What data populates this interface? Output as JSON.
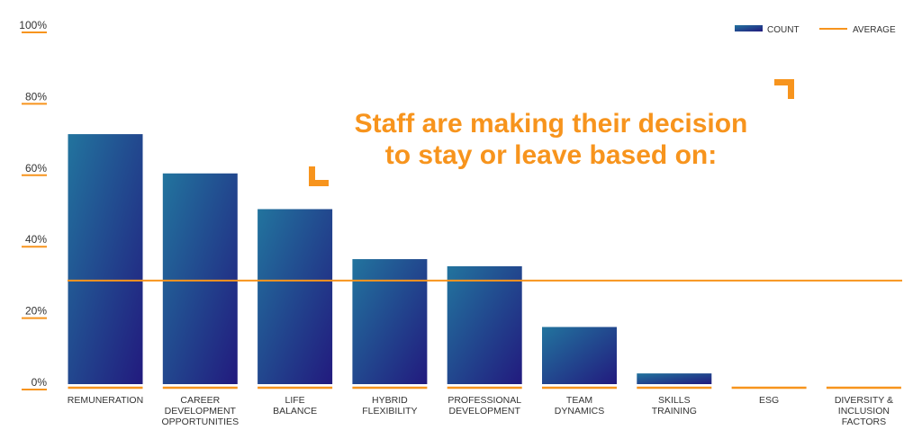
{
  "chart_data": {
    "type": "bar",
    "title": [
      "Staff are making their decision",
      "to stay or leave based on:"
    ],
    "categories": [
      [
        "REMUNERATION"
      ],
      [
        "CAREER",
        "DEVELOPMENT",
        "OPPORTUNITIES"
      ],
      [
        "LIFE",
        "BALANCE"
      ],
      [
        "HYBRID",
        "FLEXIBILITY"
      ],
      [
        "PROFESSIONAL",
        "DEVELOPMENT"
      ],
      [
        "TEAM",
        "DYNAMICS"
      ],
      [
        "SKILLS",
        "TRAINING"
      ],
      [
        "ESG"
      ],
      [
        "DIVERSITY &",
        "INCLUSION",
        "FACTORS"
      ]
    ],
    "series": [
      {
        "name": "COUNT",
        "values": [
          70,
          59,
          49,
          35,
          33,
          16,
          3,
          0,
          0
        ]
      },
      {
        "name": "AVERAGE",
        "type": "line",
        "value": 29
      }
    ],
    "yticks": [
      "0%",
      "20%",
      "40%",
      "60%",
      "80%",
      "100%"
    ],
    "ylim": [
      0,
      100
    ],
    "xlabel": "",
    "ylabel": "",
    "grid": false,
    "legend": "top-right",
    "colors": {
      "bar_start": "#22749e",
      "bar_end": "#221a7e",
      "accent": "#f7941d"
    }
  }
}
